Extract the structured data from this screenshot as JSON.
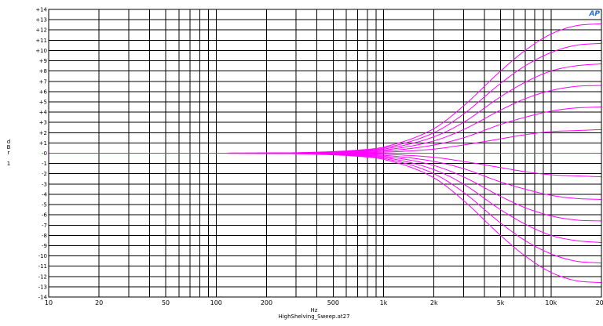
{
  "chart_data": {
    "type": "line",
    "xlabel": "Hz",
    "ylabel": [
      "d",
      "B",
      "r",
      "",
      "1"
    ],
    "filename": "HighShelving_Sweep.at27",
    "logo": "AP",
    "xscale": "log",
    "xlim": [
      10,
      20000
    ],
    "ylim": [
      -14,
      14
    ],
    "x_ticks": [
      {
        "v": 10,
        "label": "10"
      },
      {
        "v": 20,
        "label": "20"
      },
      {
        "v": 50,
        "label": "50"
      },
      {
        "v": 100,
        "label": "100"
      },
      {
        "v": 200,
        "label": "200"
      },
      {
        "v": 500,
        "label": "500"
      },
      {
        "v": 1000,
        "label": "1k"
      },
      {
        "v": 2000,
        "label": "2k"
      },
      {
        "v": 5000,
        "label": "5k"
      },
      {
        "v": 10000,
        "label": "10k"
      },
      {
        "v": 20000,
        "label": "20k"
      }
    ],
    "y_ticks": [
      {
        "v": 14,
        "label": "+14"
      },
      {
        "v": 13,
        "label": "+13"
      },
      {
        "v": 12,
        "label": "+12"
      },
      {
        "v": 11,
        "label": "+11"
      },
      {
        "v": 10,
        "label": "+10"
      },
      {
        "v": 9,
        "label": "+9"
      },
      {
        "v": 8,
        "label": "+8"
      },
      {
        "v": 7,
        "label": "+7"
      },
      {
        "v": 6,
        "label": "+6"
      },
      {
        "v": 5,
        "label": "+5"
      },
      {
        "v": 4,
        "label": "+4"
      },
      {
        "v": 3,
        "label": "+3"
      },
      {
        "v": 2,
        "label": "+2"
      },
      {
        "v": 1,
        "label": "+1"
      },
      {
        "v": 0,
        "label": "-0"
      },
      {
        "v": -1,
        "label": "-1"
      },
      {
        "v": -2,
        "label": "-2"
      },
      {
        "v": -3,
        "label": "-3"
      },
      {
        "v": -4,
        "label": "-4"
      },
      {
        "v": -5,
        "label": "-5"
      },
      {
        "v": -6,
        "label": "-6"
      },
      {
        "v": -7,
        "label": "-7"
      },
      {
        "v": -8,
        "label": "-8"
      },
      {
        "v": -9,
        "label": "-9"
      },
      {
        "v": -10,
        "label": "-10"
      },
      {
        "v": -11,
        "label": "-11"
      },
      {
        "v": -12,
        "label": "-12"
      },
      {
        "v": -13,
        "label": "-13"
      },
      {
        "v": -14,
        "label": "-14"
      }
    ],
    "grid": true,
    "line_color": "#ff00ff",
    "grid_color": "#000000",
    "x": [
      10,
      50,
      200,
      400,
      700,
      1000,
      2000,
      3000,
      5000,
      7000,
      10000,
      14000,
      20000
    ],
    "series": [
      {
        "values": [
          0,
          0,
          0.02,
          0.1,
          0.3,
          0.6,
          2.4,
          4.6,
          8.0,
          10.0,
          11.6,
          12.4,
          12.6
        ]
      },
      {
        "values": [
          0,
          0,
          0.02,
          0.08,
          0.25,
          0.5,
          2.0,
          3.8,
          6.8,
          8.5,
          9.8,
          10.5,
          10.7
        ]
      },
      {
        "values": [
          0,
          0,
          0.02,
          0.07,
          0.2,
          0.4,
          1.6,
          3.0,
          5.5,
          6.9,
          8.0,
          8.5,
          8.7
        ]
      },
      {
        "values": [
          0,
          0,
          0.01,
          0.05,
          0.15,
          0.3,
          1.2,
          2.3,
          4.2,
          5.3,
          6.1,
          6.5,
          6.6
        ]
      },
      {
        "values": [
          0,
          0,
          0.01,
          0.04,
          0.1,
          0.2,
          0.8,
          1.5,
          2.8,
          3.5,
          4.1,
          4.4,
          4.5
        ]
      },
      {
        "values": [
          0,
          0,
          0.0,
          0.02,
          0.05,
          0.1,
          0.4,
          0.8,
          1.4,
          1.8,
          2.1,
          2.2,
          2.3
        ]
      },
      {
        "values": [
          0,
          0,
          0,
          0,
          0,
          0,
          0,
          0,
          0,
          0,
          0,
          0,
          0
        ]
      },
      {
        "values": [
          0,
          0,
          0.0,
          -0.02,
          -0.05,
          -0.1,
          -0.4,
          -0.8,
          -1.4,
          -1.8,
          -2.1,
          -2.2,
          -2.3
        ]
      },
      {
        "values": [
          0,
          0,
          -0.01,
          -0.04,
          -0.1,
          -0.2,
          -0.8,
          -1.5,
          -2.8,
          -3.5,
          -4.1,
          -4.4,
          -4.5
        ]
      },
      {
        "values": [
          0,
          0,
          -0.01,
          -0.05,
          -0.15,
          -0.3,
          -1.2,
          -2.3,
          -4.2,
          -5.3,
          -6.1,
          -6.5,
          -6.6
        ]
      },
      {
        "values": [
          0,
          0,
          -0.02,
          -0.07,
          -0.2,
          -0.4,
          -1.6,
          -3.0,
          -5.5,
          -6.9,
          -8.0,
          -8.5,
          -8.7
        ]
      },
      {
        "values": [
          0,
          0,
          -0.02,
          -0.08,
          -0.25,
          -0.5,
          -2.0,
          -3.8,
          -6.8,
          -8.5,
          -9.8,
          -10.5,
          -10.7
        ]
      },
      {
        "values": [
          0,
          0,
          -0.02,
          -0.1,
          -0.3,
          -0.6,
          -2.4,
          -4.6,
          -8.0,
          -10.0,
          -11.6,
          -12.4,
          -12.6
        ]
      }
    ]
  }
}
